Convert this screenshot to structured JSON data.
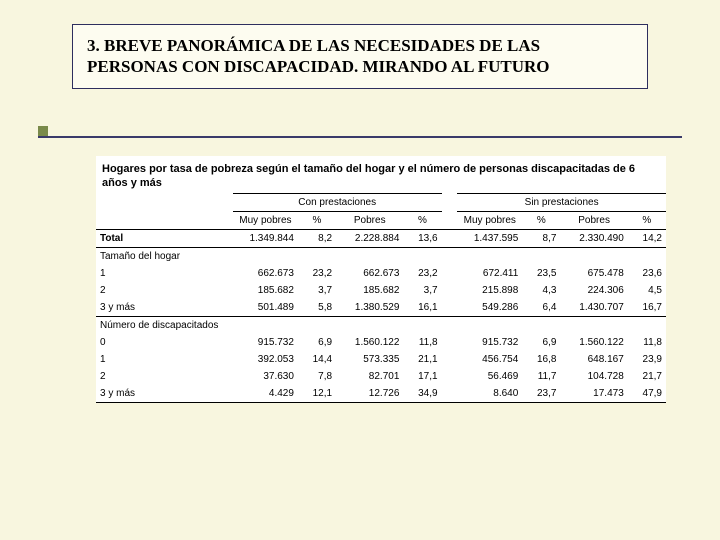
{
  "header": {
    "title": "3. BREVE PANORÁMICA DE LAS NECESIDADES DE LAS PERSONAS CON DISCAPACIDAD. MIRANDO AL FUTURO"
  },
  "table": {
    "title": "Hogares por tasa de pobreza según el tamaño del hogar y el número de personas discapacitadas de 6 años y más",
    "group_headers": {
      "g1": "Con prestaciones",
      "g2": "Sin prestaciones"
    },
    "col_headers": {
      "muy_pobres": "Muy pobres",
      "pct": "%",
      "pobres": "Pobres"
    },
    "total_label": "Total",
    "section1_label": "Tamaño del hogar",
    "section2_label": "Número de discapacitados",
    "total": {
      "a": "1.349.844",
      "ap": "8,2",
      "b": "2.228.884",
      "bp": "13,6",
      "c": "1.437.595",
      "cp": "8,7",
      "d": "2.330.490",
      "dp": "14,2"
    },
    "s1": {
      "r1_lab": "1",
      "r1": {
        "a": "662.673",
        "ap": "23,2",
        "b": "662.673",
        "bp": "23,2",
        "c": "672.411",
        "cp": "23,5",
        "d": "675.478",
        "dp": "23,6"
      },
      "r2_lab": "2",
      "r2": {
        "a": "185.682",
        "ap": "3,7",
        "b": "185.682",
        "bp": "3,7",
        "c": "215.898",
        "cp": "4,3",
        "d": "224.306",
        "dp": "4,5"
      },
      "r3_lab": "3 y más",
      "r3": {
        "a": "501.489",
        "ap": "5,8",
        "b": "1.380.529",
        "bp": "16,1",
        "c": "549.286",
        "cp": "6,4",
        "d": "1.430.707",
        "dp": "16,7"
      }
    },
    "s2": {
      "r0_lab": "0",
      "r0": {
        "a": "915.732",
        "ap": "6,9",
        "b": "1.560.122",
        "bp": "11,8",
        "c": "915.732",
        "cp": "6,9",
        "d": "1.560.122",
        "dp": "11,8"
      },
      "r1_lab": "1",
      "r1": {
        "a": "392.053",
        "ap": "14,4",
        "b": "573.335",
        "bp": "21,1",
        "c": "456.754",
        "cp": "16,8",
        "d": "648.167",
        "dp": "23,9"
      },
      "r2_lab": "2",
      "r2": {
        "a": "37.630",
        "ap": "7,8",
        "b": "82.701",
        "bp": "17,1",
        "c": "56.469",
        "cp": "11,7",
        "d": "104.728",
        "dp": "21,7"
      },
      "r3_lab": "3 y más",
      "r3": {
        "a": "4.429",
        "ap": "12,1",
        "b": "12.726",
        "bp": "34,9",
        "c": "8.640",
        "cp": "23,7",
        "d": "17.473",
        "dp": "47,9"
      }
    }
  },
  "colors": {
    "page_bg": "#f8f6df",
    "title_border": "#2e2e5e",
    "bullet": "#7a8a4a",
    "rule": "#3a3a6a"
  }
}
